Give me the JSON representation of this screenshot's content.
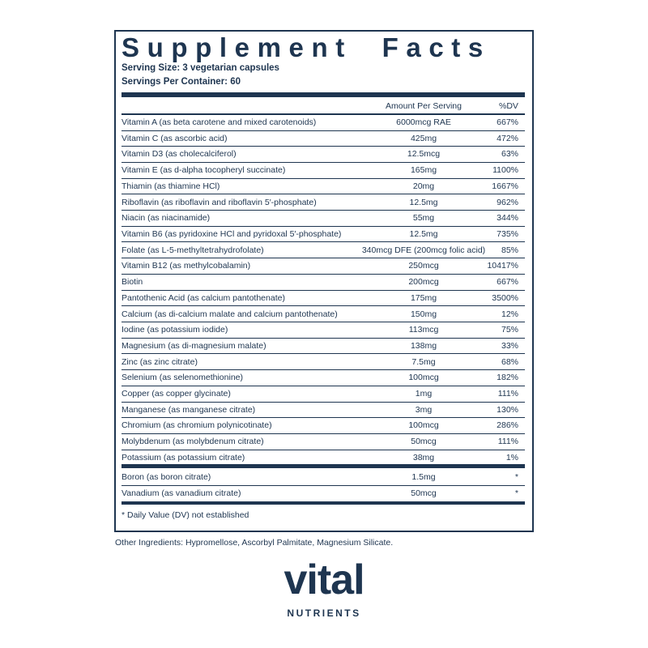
{
  "title": "Supplement Facts",
  "serving_size": "Serving Size: 3 vegetarian capsules",
  "servings_per_container": "Servings Per Container: 60",
  "headers": {
    "amount": "Amount Per Serving",
    "dv": "%DV"
  },
  "rows": [
    [
      "Vitamin A (as beta carotene and mixed carotenoids)",
      "6000mcg RAE",
      "667%"
    ],
    [
      "Vitamin C (as ascorbic acid)",
      "425mg",
      "472%"
    ],
    [
      "Vitamin D3 (as cholecalciferol)",
      "12.5mcg",
      "63%"
    ],
    [
      "Vitamin E (as d-alpha tocopheryl succinate)",
      "165mg",
      "1100%"
    ],
    [
      "Thiamin (as thiamine HCl)",
      "20mg",
      "1667%"
    ],
    [
      "Riboflavin (as riboflavin and riboflavin 5′-phosphate)",
      "12.5mg",
      "962%"
    ],
    [
      "Niacin (as niacinamide)",
      "55mg",
      "344%"
    ],
    [
      "Vitamin B6 (as pyridoxine HCl and pyridoxal 5′-phosphate)",
      "12.5mg",
      "735%"
    ],
    [
      "Folate (as L-5-methyltetrahydrofolate)",
      "340mcg DFE (200mcg folic acid)",
      "85%"
    ],
    [
      "Vitamin B12 (as methylcobalamin)",
      "250mcg",
      "10417%"
    ],
    [
      "Biotin",
      "200mcg",
      "667%"
    ],
    [
      "Pantothenic Acid (as calcium pantothenate)",
      "175mg",
      "3500%"
    ],
    [
      "Calcium (as di-calcium malate and calcium pantothenate)",
      "150mg",
      "12%"
    ],
    [
      "Iodine (as potassium iodide)",
      "113mcg",
      "75%"
    ],
    [
      "Magnesium (as di-magnesium malate)",
      "138mg",
      "33%"
    ],
    [
      "Zinc (as zinc citrate)",
      "7.5mg",
      "68%"
    ],
    [
      "Selenium (as selenomethionine)",
      "100mcg",
      "182%"
    ],
    [
      "Copper (as copper glycinate)",
      "1mg",
      "111%"
    ],
    [
      "Manganese (as manganese citrate)",
      "3mg",
      "130%"
    ],
    [
      "Chromium (as chromium polynicotinate)",
      "100mcg",
      "286%"
    ],
    [
      "Molybdenum (as molybdenum citrate)",
      "50mcg",
      "111%"
    ],
    [
      "Potassium (as potassium citrate)",
      "38mg",
      "1%"
    ]
  ],
  "extra_rows": [
    [
      "Boron (as boron citrate)",
      "1.5mg",
      "*"
    ],
    [
      "Vanadium (as vanadium citrate)",
      "50mcg",
      "*"
    ]
  ],
  "footnote": "* Daily Value (DV) not established",
  "other_ingredients": "Other Ingredients: Hypromellose, Ascorbyl Palmitate, Magnesium Silicate.",
  "brand": {
    "name": "vital",
    "tagline": "NUTRIENTS"
  }
}
